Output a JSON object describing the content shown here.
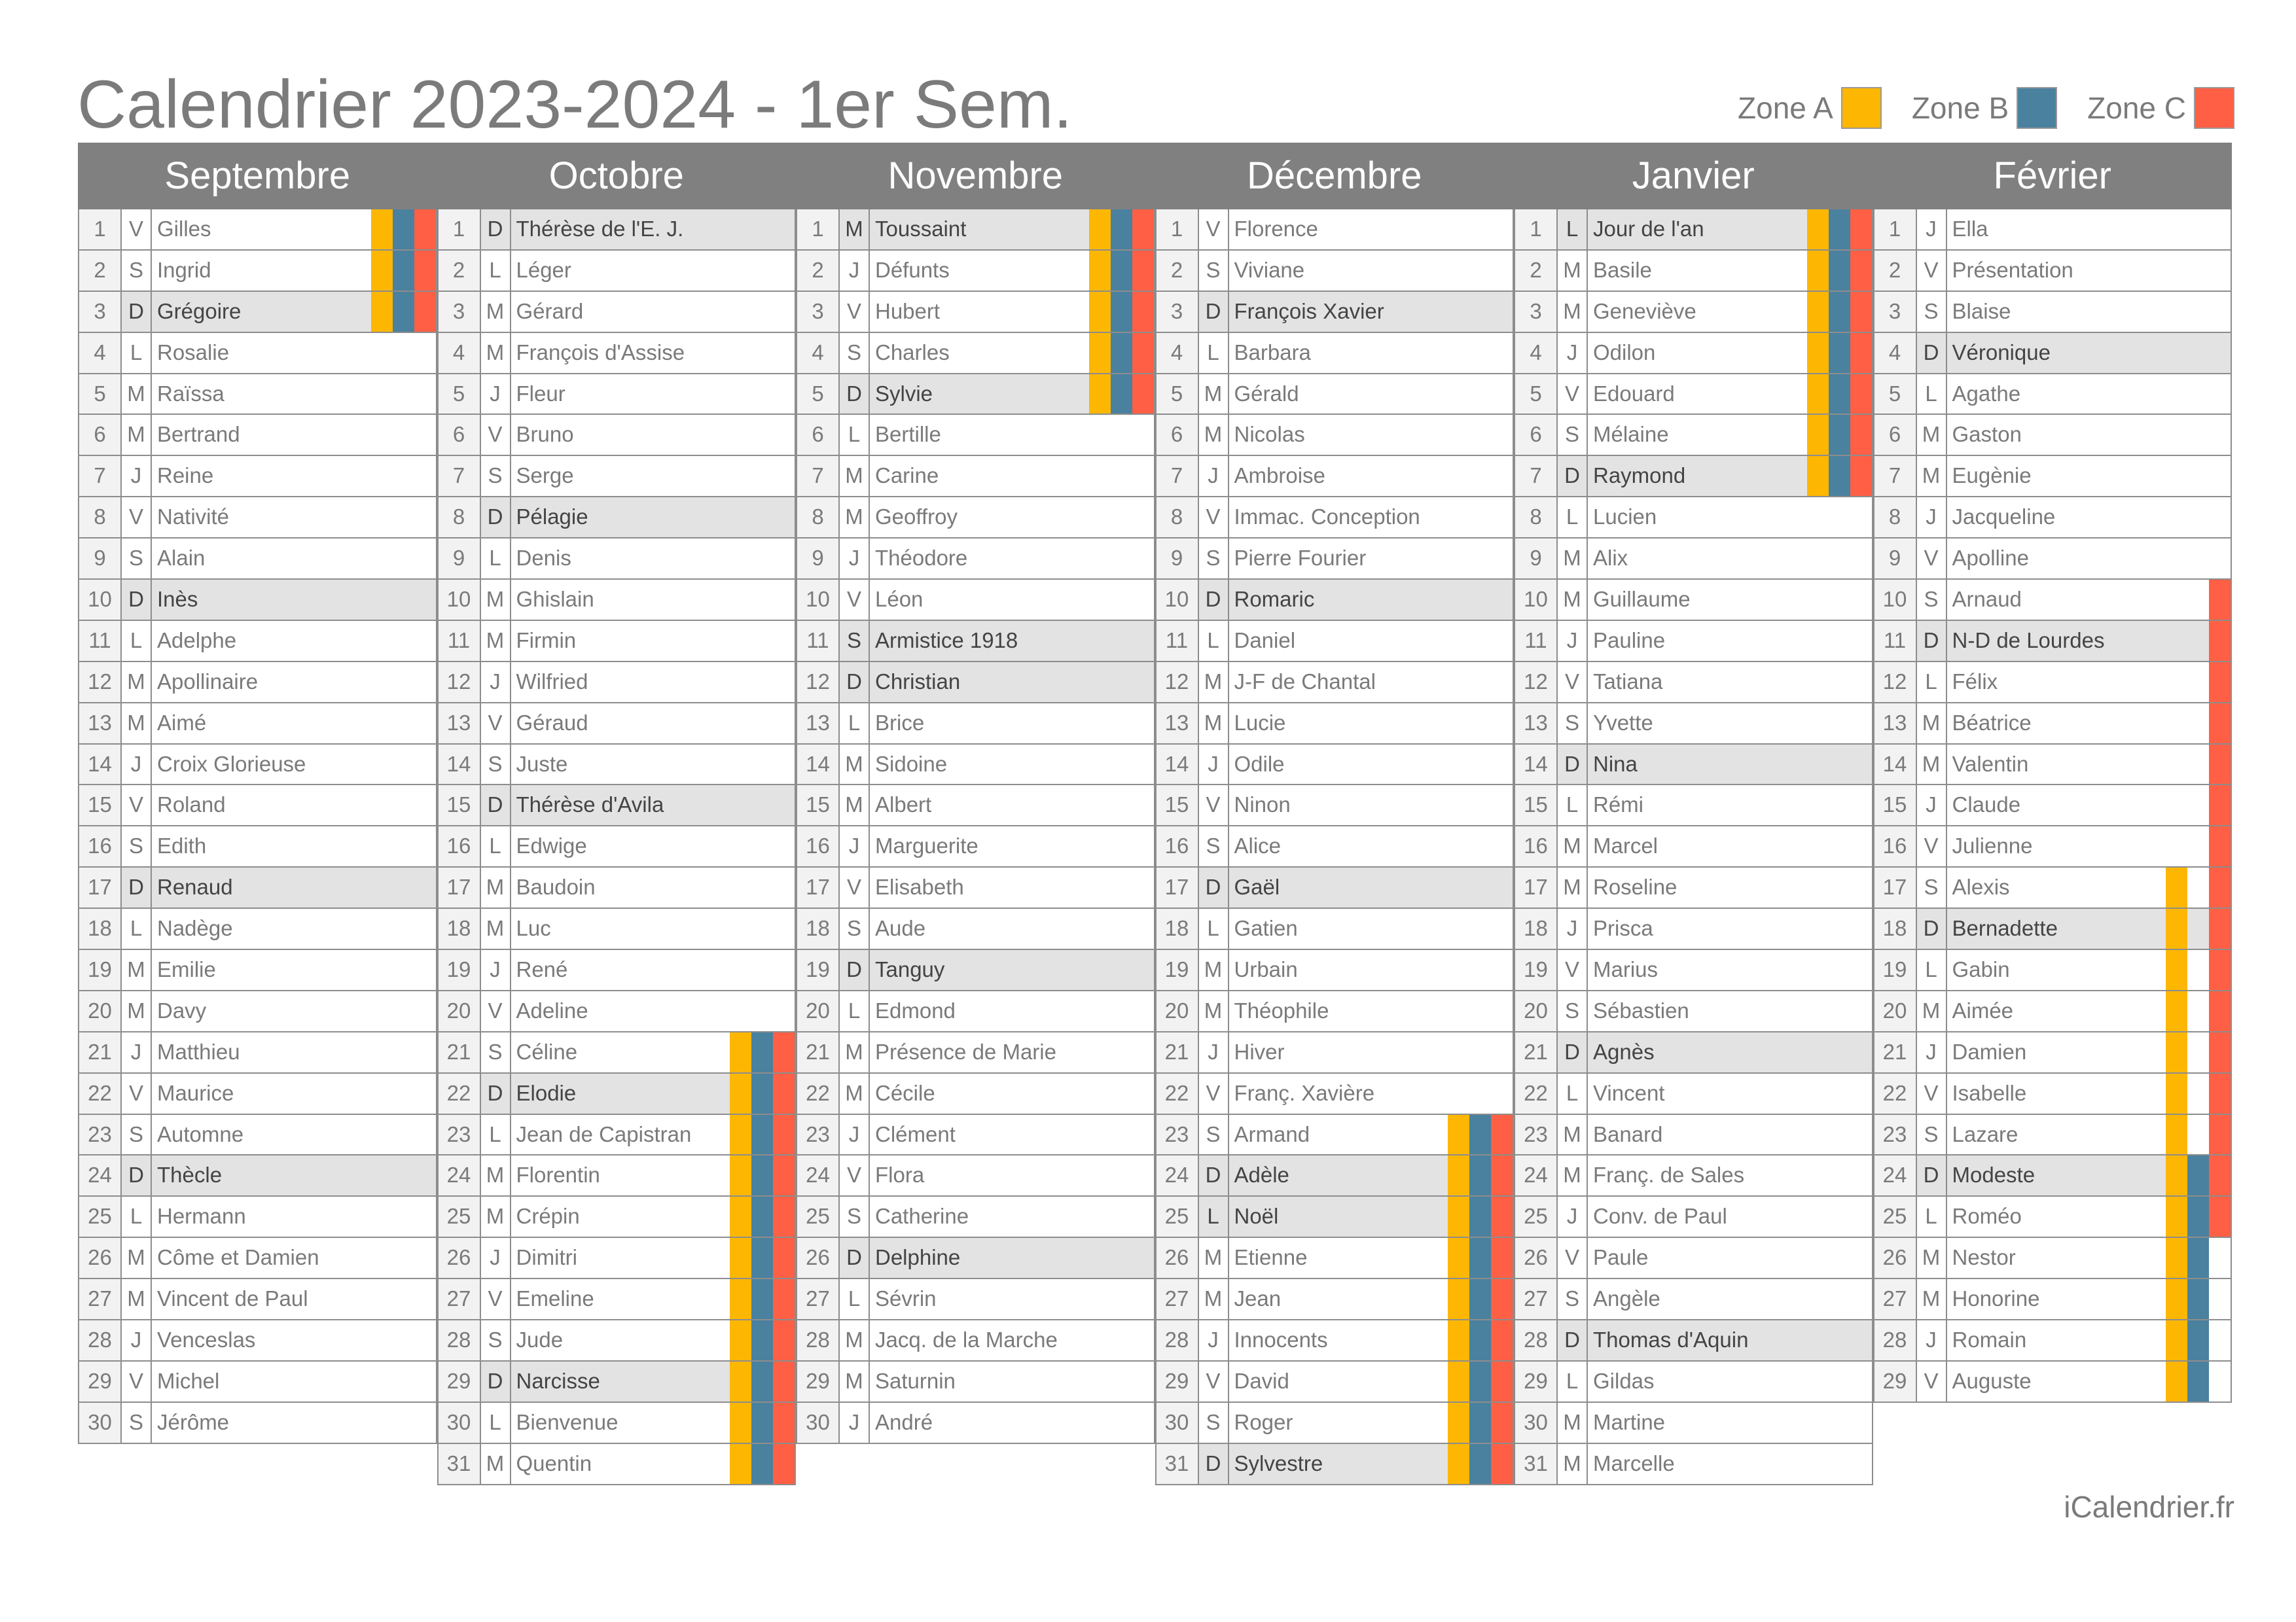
{
  "title": "Calendrier 2023-2024 - 1er Sem.",
  "legend": [
    {
      "label": "Zone A",
      "color": "#FDB702"
    },
    {
      "label": "Zone B",
      "color": "#4A819E"
    },
    {
      "label": "Zone C",
      "color": "#FF5F45"
    }
  ],
  "holidays": {
    "Novembre": [
      1,
      11
    ],
    "Décembre": [
      25
    ],
    "Janvier": [
      1
    ]
  },
  "months": [
    {
      "name": "Septembre",
      "zones": {
        "A": [
          1,
          3
        ],
        "B": [
          1,
          3
        ],
        "C": [
          1,
          3
        ]
      },
      "days": [
        [
          "1",
          "V",
          "Gilles"
        ],
        [
          "2",
          "S",
          "Ingrid"
        ],
        [
          "3",
          "D",
          "Grégoire"
        ],
        [
          "4",
          "L",
          "Rosalie"
        ],
        [
          "5",
          "M",
          "Raïssa"
        ],
        [
          "6",
          "M",
          "Bertrand"
        ],
        [
          "7",
          "J",
          "Reine"
        ],
        [
          "8",
          "V",
          "Nativité"
        ],
        [
          "9",
          "S",
          "Alain"
        ],
        [
          "10",
          "D",
          "Inès"
        ],
        [
          "11",
          "L",
          "Adelphe"
        ],
        [
          "12",
          "M",
          "Apollinaire"
        ],
        [
          "13",
          "M",
          "Aimé"
        ],
        [
          "14",
          "J",
          "Croix Glorieuse"
        ],
        [
          "15",
          "V",
          "Roland"
        ],
        [
          "16",
          "S",
          "Edith"
        ],
        [
          "17",
          "D",
          "Renaud"
        ],
        [
          "18",
          "L",
          "Nadège"
        ],
        [
          "19",
          "M",
          "Emilie"
        ],
        [
          "20",
          "M",
          "Davy"
        ],
        [
          "21",
          "J",
          "Matthieu"
        ],
        [
          "22",
          "V",
          "Maurice"
        ],
        [
          "23",
          "S",
          "Automne"
        ],
        [
          "24",
          "D",
          "Thècle"
        ],
        [
          "25",
          "L",
          "Hermann"
        ],
        [
          "26",
          "M",
          "Côme et Damien"
        ],
        [
          "27",
          "M",
          "Vincent de Paul"
        ],
        [
          "28",
          "J",
          "Venceslas"
        ],
        [
          "29",
          "V",
          "Michel"
        ],
        [
          "30",
          "S",
          "Jérôme"
        ]
      ]
    },
    {
      "name": "Octobre",
      "zones": {
        "A": [
          21,
          31
        ],
        "B": [
          21,
          31
        ],
        "C": [
          21,
          31
        ]
      },
      "days": [
        [
          "1",
          "D",
          "Thérèse de l'E. J."
        ],
        [
          "2",
          "L",
          "Léger"
        ],
        [
          "3",
          "M",
          "Gérard"
        ],
        [
          "4",
          "M",
          "François d'Assise"
        ],
        [
          "5",
          "J",
          "Fleur"
        ],
        [
          "6",
          "V",
          "Bruno"
        ],
        [
          "7",
          "S",
          "Serge"
        ],
        [
          "8",
          "D",
          "Pélagie"
        ],
        [
          "9",
          "L",
          "Denis"
        ],
        [
          "10",
          "M",
          "Ghislain"
        ],
        [
          "11",
          "M",
          "Firmin"
        ],
        [
          "12",
          "J",
          "Wilfried"
        ],
        [
          "13",
          "V",
          "Géraud"
        ],
        [
          "14",
          "S",
          "Juste"
        ],
        [
          "15",
          "D",
          "Thérèse d'Avila"
        ],
        [
          "16",
          "L",
          "Edwige"
        ],
        [
          "17",
          "M",
          "Baudoin"
        ],
        [
          "18",
          "M",
          "Luc"
        ],
        [
          "19",
          "J",
          "René"
        ],
        [
          "20",
          "V",
          "Adeline"
        ],
        [
          "21",
          "S",
          "Céline"
        ],
        [
          "22",
          "D",
          "Elodie"
        ],
        [
          "23",
          "L",
          "Jean de Capistran"
        ],
        [
          "24",
          "M",
          "Florentin"
        ],
        [
          "25",
          "M",
          "Crépin"
        ],
        [
          "26",
          "J",
          "Dimitri"
        ],
        [
          "27",
          "V",
          "Emeline"
        ],
        [
          "28",
          "S",
          "Jude"
        ],
        [
          "29",
          "D",
          "Narcisse"
        ],
        [
          "30",
          "L",
          "Bienvenue"
        ],
        [
          "31",
          "M",
          "Quentin"
        ]
      ]
    },
    {
      "name": "Novembre",
      "zones": {
        "A": [
          1,
          5
        ],
        "B": [
          1,
          5
        ],
        "C": [
          1,
          5
        ]
      },
      "days": [
        [
          "1",
          "M",
          "Toussaint"
        ],
        [
          "2",
          "J",
          "Défunts"
        ],
        [
          "3",
          "V",
          "Hubert"
        ],
        [
          "4",
          "S",
          "Charles"
        ],
        [
          "5",
          "D",
          "Sylvie"
        ],
        [
          "6",
          "L",
          "Bertille"
        ],
        [
          "7",
          "M",
          "Carine"
        ],
        [
          "8",
          "M",
          "Geoffroy"
        ],
        [
          "9",
          "J",
          "Théodore"
        ],
        [
          "10",
          "V",
          "Léon"
        ],
        [
          "11",
          "S",
          "Armistice 1918"
        ],
        [
          "12",
          "D",
          "Christian"
        ],
        [
          "13",
          "L",
          "Brice"
        ],
        [
          "14",
          "M",
          "Sidoine"
        ],
        [
          "15",
          "M",
          "Albert"
        ],
        [
          "16",
          "J",
          "Marguerite"
        ],
        [
          "17",
          "V",
          "Elisabeth"
        ],
        [
          "18",
          "S",
          "Aude"
        ],
        [
          "19",
          "D",
          "Tanguy"
        ],
        [
          "20",
          "L",
          "Edmond"
        ],
        [
          "21",
          "M",
          "Présence de Marie"
        ],
        [
          "22",
          "M",
          "Cécile"
        ],
        [
          "23",
          "J",
          "Clément"
        ],
        [
          "24",
          "V",
          "Flora"
        ],
        [
          "25",
          "S",
          "Catherine"
        ],
        [
          "26",
          "D",
          "Delphine"
        ],
        [
          "27",
          "L",
          "Sévrin"
        ],
        [
          "28",
          "M",
          "Jacq. de la Marche"
        ],
        [
          "29",
          "M",
          "Saturnin"
        ],
        [
          "30",
          "J",
          "André"
        ]
      ]
    },
    {
      "name": "Décembre",
      "zones": {
        "A": [
          23,
          31
        ],
        "B": [
          23,
          31
        ],
        "C": [
          23,
          31
        ]
      },
      "days": [
        [
          "1",
          "V",
          "Florence"
        ],
        [
          "2",
          "S",
          "Viviane"
        ],
        [
          "3",
          "D",
          "François Xavier"
        ],
        [
          "4",
          "L",
          "Barbara"
        ],
        [
          "5",
          "M",
          "Gérald"
        ],
        [
          "6",
          "M",
          "Nicolas"
        ],
        [
          "7",
          "J",
          "Ambroise"
        ],
        [
          "8",
          "V",
          "Immac. Conception"
        ],
        [
          "9",
          "S",
          "Pierre Fourier"
        ],
        [
          "10",
          "D",
          "Romaric"
        ],
        [
          "11",
          "L",
          "Daniel"
        ],
        [
          "12",
          "M",
          "J-F de Chantal"
        ],
        [
          "13",
          "M",
          "Lucie"
        ],
        [
          "14",
          "J",
          "Odile"
        ],
        [
          "15",
          "V",
          "Ninon"
        ],
        [
          "16",
          "S",
          "Alice"
        ],
        [
          "17",
          "D",
          "Gaël"
        ],
        [
          "18",
          "L",
          "Gatien"
        ],
        [
          "19",
          "M",
          "Urbain"
        ],
        [
          "20",
          "M",
          "Théophile"
        ],
        [
          "21",
          "J",
          "Hiver"
        ],
        [
          "22",
          "V",
          "Franç. Xavière"
        ],
        [
          "23",
          "S",
          "Armand"
        ],
        [
          "24",
          "D",
          "Adèle"
        ],
        [
          "25",
          "L",
          "Noël"
        ],
        [
          "26",
          "M",
          "Etienne"
        ],
        [
          "27",
          "M",
          "Jean"
        ],
        [
          "28",
          "J",
          "Innocents"
        ],
        [
          "29",
          "V",
          "David"
        ],
        [
          "30",
          "S",
          "Roger"
        ],
        [
          "31",
          "D",
          "Sylvestre"
        ]
      ]
    },
    {
      "name": "Janvier",
      "zones": {
        "A": [
          1,
          7
        ],
        "B": [
          1,
          7
        ],
        "C": [
          1,
          7
        ]
      },
      "days": [
        [
          "1",
          "L",
          "Jour de l'an"
        ],
        [
          "2",
          "M",
          "Basile"
        ],
        [
          "3",
          "M",
          "Geneviève"
        ],
        [
          "4",
          "J",
          "Odilon"
        ],
        [
          "5",
          "V",
          "Edouard"
        ],
        [
          "6",
          "S",
          "Mélaine"
        ],
        [
          "7",
          "D",
          "Raymond"
        ],
        [
          "8",
          "L",
          "Lucien"
        ],
        [
          "9",
          "M",
          "Alix"
        ],
        [
          "10",
          "M",
          "Guillaume"
        ],
        [
          "11",
          "J",
          "Pauline"
        ],
        [
          "12",
          "V",
          "Tatiana"
        ],
        [
          "13",
          "S",
          "Yvette"
        ],
        [
          "14",
          "D",
          "Nina"
        ],
        [
          "15",
          "L",
          "Rémi"
        ],
        [
          "16",
          "M",
          "Marcel"
        ],
        [
          "17",
          "M",
          "Roseline"
        ],
        [
          "18",
          "J",
          "Prisca"
        ],
        [
          "19",
          "V",
          "Marius"
        ],
        [
          "20",
          "S",
          "Sébastien"
        ],
        [
          "21",
          "D",
          "Agnès"
        ],
        [
          "22",
          "L",
          "Vincent"
        ],
        [
          "23",
          "M",
          "Banard"
        ],
        [
          "24",
          "M",
          "Franç. de Sales"
        ],
        [
          "25",
          "J",
          "Conv. de Paul"
        ],
        [
          "26",
          "V",
          "Paule"
        ],
        [
          "27",
          "S",
          "Angèle"
        ],
        [
          "28",
          "D",
          "Thomas d'Aquin"
        ],
        [
          "29",
          "L",
          "Gildas"
        ],
        [
          "30",
          "M",
          "Martine"
        ],
        [
          "31",
          "M",
          "Marcelle"
        ]
      ]
    },
    {
      "name": "Février",
      "zones": {
        "A": [
          17,
          29
        ],
        "B": [
          24,
          29
        ],
        "C": [
          10,
          25
        ]
      },
      "days": [
        [
          "1",
          "J",
          "Ella"
        ],
        [
          "2",
          "V",
          "Présentation"
        ],
        [
          "3",
          "S",
          "Blaise"
        ],
        [
          "4",
          "D",
          "Véronique"
        ],
        [
          "5",
          "L",
          "Agathe"
        ],
        [
          "6",
          "M",
          "Gaston"
        ],
        [
          "7",
          "M",
          "Eugènie"
        ],
        [
          "8",
          "J",
          "Jacqueline"
        ],
        [
          "9",
          "V",
          "Apolline"
        ],
        [
          "10",
          "S",
          "Arnaud"
        ],
        [
          "11",
          "D",
          "N-D de Lourdes"
        ],
        [
          "12",
          "L",
          "Félix"
        ],
        [
          "13",
          "M",
          "Béatrice"
        ],
        [
          "14",
          "M",
          "Valentin"
        ],
        [
          "15",
          "J",
          "Claude"
        ],
        [
          "16",
          "V",
          "Julienne"
        ],
        [
          "17",
          "S",
          "Alexis"
        ],
        [
          "18",
          "D",
          "Bernadette"
        ],
        [
          "19",
          "L",
          "Gabin"
        ],
        [
          "20",
          "M",
          "Aimée"
        ],
        [
          "21",
          "J",
          "Damien"
        ],
        [
          "22",
          "V",
          "Isabelle"
        ],
        [
          "23",
          "S",
          "Lazare"
        ],
        [
          "24",
          "D",
          "Modeste"
        ],
        [
          "25",
          "L",
          "Roméo"
        ],
        [
          "26",
          "M",
          "Nestor"
        ],
        [
          "27",
          "M",
          "Honorine"
        ],
        [
          "28",
          "J",
          "Romain"
        ],
        [
          "29",
          "V",
          "Auguste"
        ]
      ]
    }
  ],
  "footer": "iCalendrier.fr"
}
